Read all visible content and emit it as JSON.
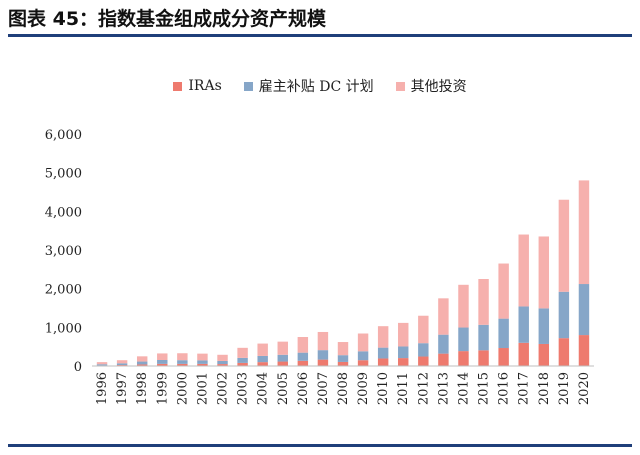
{
  "title": "图表 45：指数基金组成成分资产规模",
  "colors": {
    "ira": "#ee7a6e",
    "dc": "#86a6c8",
    "other": "#f6b0ad",
    "rule": "#1f3f7a"
  },
  "chart_data": {
    "type": "bar",
    "stacked": true,
    "categories": [
      "1996",
      "1997",
      "1998",
      "1999",
      "2000",
      "2001",
      "2002",
      "2003",
      "2004",
      "2005",
      "2006",
      "2007",
      "2008",
      "2009",
      "2010",
      "2011",
      "2012",
      "2013",
      "2014",
      "2015",
      "2016",
      "2017",
      "2018",
      "2019",
      "2020"
    ],
    "series": [
      {
        "name": "IRAs",
        "color": "#ee7a6e",
        "values": [
          15,
          25,
          40,
          55,
          55,
          55,
          50,
          80,
          100,
          115,
          135,
          165,
          105,
          150,
          195,
          205,
          245,
          320,
          385,
          405,
          465,
          600,
          570,
          720,
          800
        ]
      },
      {
        "name": "雇主补贴 DC 计划",
        "color": "#86a6c8",
        "values": [
          30,
          45,
          75,
          100,
          95,
          90,
          80,
          130,
          160,
          175,
          210,
          245,
          175,
          230,
          280,
          300,
          345,
          490,
          610,
          660,
          760,
          940,
          920,
          1200,
          1320
        ]
      },
      {
        "name": "其他投资",
        "color": "#f6b0ad",
        "values": [
          55,
          80,
          135,
          170,
          180,
          175,
          160,
          260,
          320,
          340,
          405,
          470,
          340,
          460,
          555,
          610,
          710,
          940,
          1105,
          1185,
          1425,
          1860,
          1860,
          2380,
          2680
        ]
      }
    ],
    "yticks": [
      "0",
      "1,000",
      "2,000",
      "3,000",
      "4,000",
      "5,000",
      "6,000"
    ],
    "ylim": [
      0,
      6000
    ],
    "legend_position": "top",
    "grid": false
  }
}
